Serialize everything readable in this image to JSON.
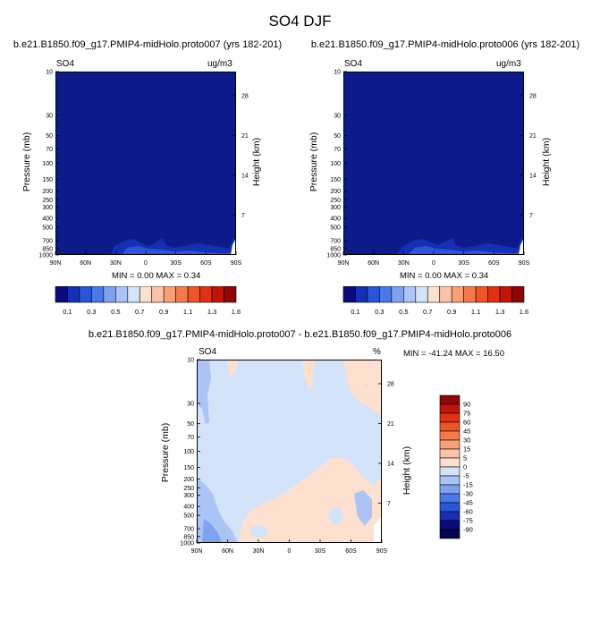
{
  "title": "SO4 DJF",
  "chart_data": [
    {
      "type": "heatmap",
      "panel": "case1",
      "title": "b.e21.B1850.f09_g17.PMIP4-midHolo.proto007 (yrs 182-201)",
      "left_label": "SO4",
      "units": "ug/m3",
      "xlabel": "",
      "ylabel": "Pressure (mb)",
      "ylabel_right": "Height (km)",
      "x_ticks": [
        "90N",
        "60N",
        "30N",
        "0",
        "30S",
        "60S",
        "90S"
      ],
      "y_ticks": [
        "10",
        "30",
        "50",
        "70",
        "100",
        "150",
        "200",
        "250",
        "300",
        "400",
        "500",
        "700",
        "850",
        "1000"
      ],
      "y_ticks_right": [
        "28",
        "21",
        "14",
        "7"
      ],
      "stats_text": "MIN =   0.00  MAX =   0.34",
      "min": 0.0,
      "max": 0.34,
      "colorbar_labels": [
        "0.1",
        "0.3",
        "0.5",
        "0.7",
        "0.9",
        "1.1",
        "1.3",
        "1.6"
      ]
    },
    {
      "type": "heatmap",
      "panel": "case2",
      "title": "b.e21.B1850.f09_g17.PMIP4-midHolo.proto006 (yrs 182-201)",
      "left_label": "SO4",
      "units": "ug/m3",
      "xlabel": "",
      "ylabel": "Pressure (mb)",
      "ylabel_right": "Height (km)",
      "x_ticks": [
        "90N",
        "60N",
        "30N",
        "0",
        "30S",
        "60S",
        "90S"
      ],
      "y_ticks": [
        "10",
        "30",
        "50",
        "70",
        "100",
        "150",
        "200",
        "250",
        "300",
        "400",
        "500",
        "700",
        "850",
        "1000"
      ],
      "y_ticks_right": [
        "28",
        "21",
        "14",
        "7"
      ],
      "stats_text": "MIN =   0.00  MAX =   0.34",
      "min": 0.0,
      "max": 0.34,
      "colorbar_labels": [
        "0.1",
        "0.3",
        "0.5",
        "0.7",
        "0.9",
        "1.1",
        "1.3",
        "1.6"
      ]
    },
    {
      "type": "heatmap",
      "panel": "difference",
      "title": "b.e21.B1850.f09_g17.PMIP4-midHolo.proto007 - b.e21.B1850.f09_g17.PMIP4-midHolo.proto006",
      "left_label": "SO4",
      "units": "%",
      "xlabel": "",
      "ylabel": "Pressure (mb)",
      "ylabel_right": "Height (km)",
      "x_ticks": [
        "90N",
        "60N",
        "30N",
        "0",
        "30S",
        "60S",
        "90S"
      ],
      "y_ticks": [
        "10",
        "30",
        "50",
        "70",
        "100",
        "150",
        "200",
        "250",
        "300",
        "400",
        "500",
        "700",
        "850",
        "1000"
      ],
      "y_ticks_right": [
        "28",
        "21",
        "14",
        "7"
      ],
      "stats_text": "MIN = -41.24  MAX =  16.50",
      "min": -41.24,
      "max": 16.5,
      "colorbar_labels": [
        "90",
        "75",
        "60",
        "45",
        "30",
        "15",
        "5",
        "0",
        "-5",
        "-15",
        "-30",
        "-45",
        "-60",
        "-75",
        "-90"
      ]
    }
  ],
  "colors": {
    "seq_palette": [
      "#0a0a7a",
      "#1530b5",
      "#2a55d8",
      "#4a78e8",
      "#7ea2f0",
      "#aac4f5",
      "#d3e3fa",
      "#fde0d0",
      "#fbc3a8",
      "#f8a07a",
      "#f47a4e",
      "#ee5528",
      "#e03212",
      "#bf150c",
      "#8c0706"
    ],
    "div_palette": [
      "#8c0706",
      "#bf150c",
      "#e03212",
      "#ee5528",
      "#f47a4e",
      "#f8a07a",
      "#fbc3a8",
      "#fde0d0",
      "#d3e3fa",
      "#aac4f5",
      "#7ea2f0",
      "#4a78e8",
      "#2a55d8",
      "#1530b5",
      "#0a0a7a",
      "#050550"
    ],
    "field_dark": "#0d1a8a",
    "diff_light_blue": "#d3e3fa",
    "diff_peach": "#fde0d0",
    "diff_mid_blue": "#aac4f5"
  }
}
